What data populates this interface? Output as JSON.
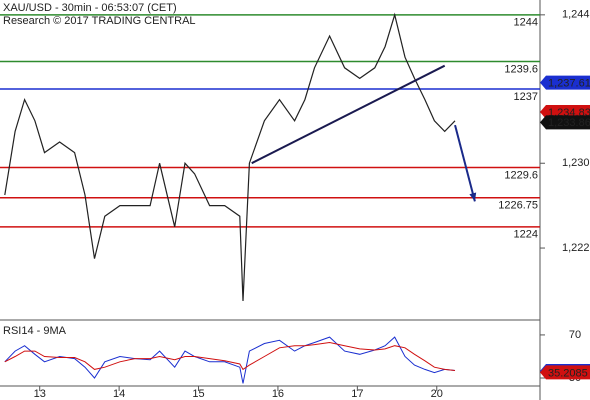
{
  "chart_data": {
    "type": "line",
    "title": "XAU/USD - 30min - 06:53:07 (CET)",
    "subtitle": "Research © 2017 TRADING CENTRAL",
    "x": [
      -0.44,
      -0.31,
      -0.19,
      -0.06,
      0.06,
      0.25,
      0.44,
      0.57,
      0.69,
      0.82,
      1.01,
      1.2,
      1.39,
      1.51,
      1.7,
      1.83,
      1.95,
      2.14,
      2.33,
      2.52,
      2.56,
      2.64,
      2.83,
      3.02,
      3.21,
      3.34,
      3.46,
      3.65,
      3.84,
      4.03,
      4.22,
      4.35,
      4.47,
      4.6,
      4.72,
      4.85,
      4.97,
      5.1,
      5.23
    ],
    "series": [
      {
        "name": "XAU/USD",
        "color": "#222222",
        "values": [
          1227,
          1233,
          1236,
          1234,
          1231,
          1232,
          1231,
          1227,
          1221,
          1225,
          1226,
          1226,
          1226,
          1230,
          1224,
          1230,
          1229,
          1226,
          1226,
          1225,
          1217,
          1230,
          1234,
          1236,
          1234,
          1236,
          1239,
          1242,
          1239,
          1238,
          1239,
          1241,
          1244,
          1240,
          1238,
          1236,
          1234,
          1233,
          1234
        ]
      }
    ],
    "xlim": [
      -0.5,
      6.3
    ],
    "xticks": [
      {
        "value": 0,
        "label": "13"
      },
      {
        "value": 1,
        "label": "14"
      },
      {
        "value": 2,
        "label": "15"
      },
      {
        "value": 3,
        "label": "16"
      },
      {
        "value": 4,
        "label": "17"
      },
      {
        "value": 5,
        "label": "20"
      }
    ],
    "ylim": [
      1215.4,
      1245.4
    ],
    "yticks": [
      {
        "value": 1222,
        "label": "1,222"
      },
      {
        "value": 1230,
        "label": "1,230"
      },
      {
        "value": 1244,
        "label": "1,244"
      }
    ],
    "levels": [
      {
        "value": 1244,
        "label": "1244",
        "color": "#2e8b2e"
      },
      {
        "value": 1239.6,
        "label": "1239.6",
        "color": "#2e8b2e"
      },
      {
        "value": 1237,
        "label": "1237",
        "color": "#1a2fd0"
      },
      {
        "value": 1229.6,
        "label": "1229.6",
        "color": "#d01010"
      },
      {
        "value": 1226.75,
        "label": "1226.75",
        "color": "#d01010"
      },
      {
        "value": 1224,
        "label": "1224",
        "color": "#d01010"
      }
    ],
    "price_flags": [
      {
        "value": 1237.61,
        "label": "1,237.61",
        "color": "#1a2fd0"
      },
      {
        "value": 1234.83,
        "label": "1,234.83",
        "color": "#d01010"
      },
      {
        "value": 1233.86,
        "label": "1,233.86",
        "color": "#111111"
      }
    ],
    "trendline": {
      "x": [
        2.67,
        5.1
      ],
      "values": [
        1230,
        1239.2
      ]
    },
    "forecast": {
      "x": [
        5.23,
        5.48
      ],
      "values": [
        1233.6,
        1226.4
      ]
    },
    "rsi": {
      "title": "RSI14 - 9MA",
      "ylim": [
        17,
        82
      ],
      "yticks": [
        30,
        70
      ],
      "series": [
        {
          "name": "RSI14",
          "color": "#1a2fd0",
          "values": [
            45,
            55,
            60,
            52,
            45,
            50,
            48,
            40,
            30,
            45,
            50,
            48,
            47,
            55,
            40,
            55,
            50,
            45,
            45,
            40,
            25,
            55,
            62,
            65,
            55,
            60,
            63,
            68,
            55,
            52,
            56,
            60,
            68,
            50,
            42,
            38,
            35,
            38,
            37
          ]
        },
        {
          "name": "9MA",
          "color": "#d01010",
          "values": [
            45,
            50,
            55,
            55,
            50,
            49,
            49,
            45,
            38,
            40,
            45,
            48,
            48,
            50,
            47,
            50,
            50,
            48,
            46,
            43,
            38,
            42,
            50,
            58,
            60,
            60,
            61,
            63,
            60,
            57,
            56,
            57,
            60,
            58,
            52,
            46,
            40,
            38,
            37
          ]
        }
      ],
      "flags": [
        {
          "value": 36.48,
          "label": "36.48",
          "color": "#1a2fd0"
        },
        {
          "value": 35.2085,
          "label": "35.2085",
          "color": "#d01010"
        }
      ]
    }
  }
}
